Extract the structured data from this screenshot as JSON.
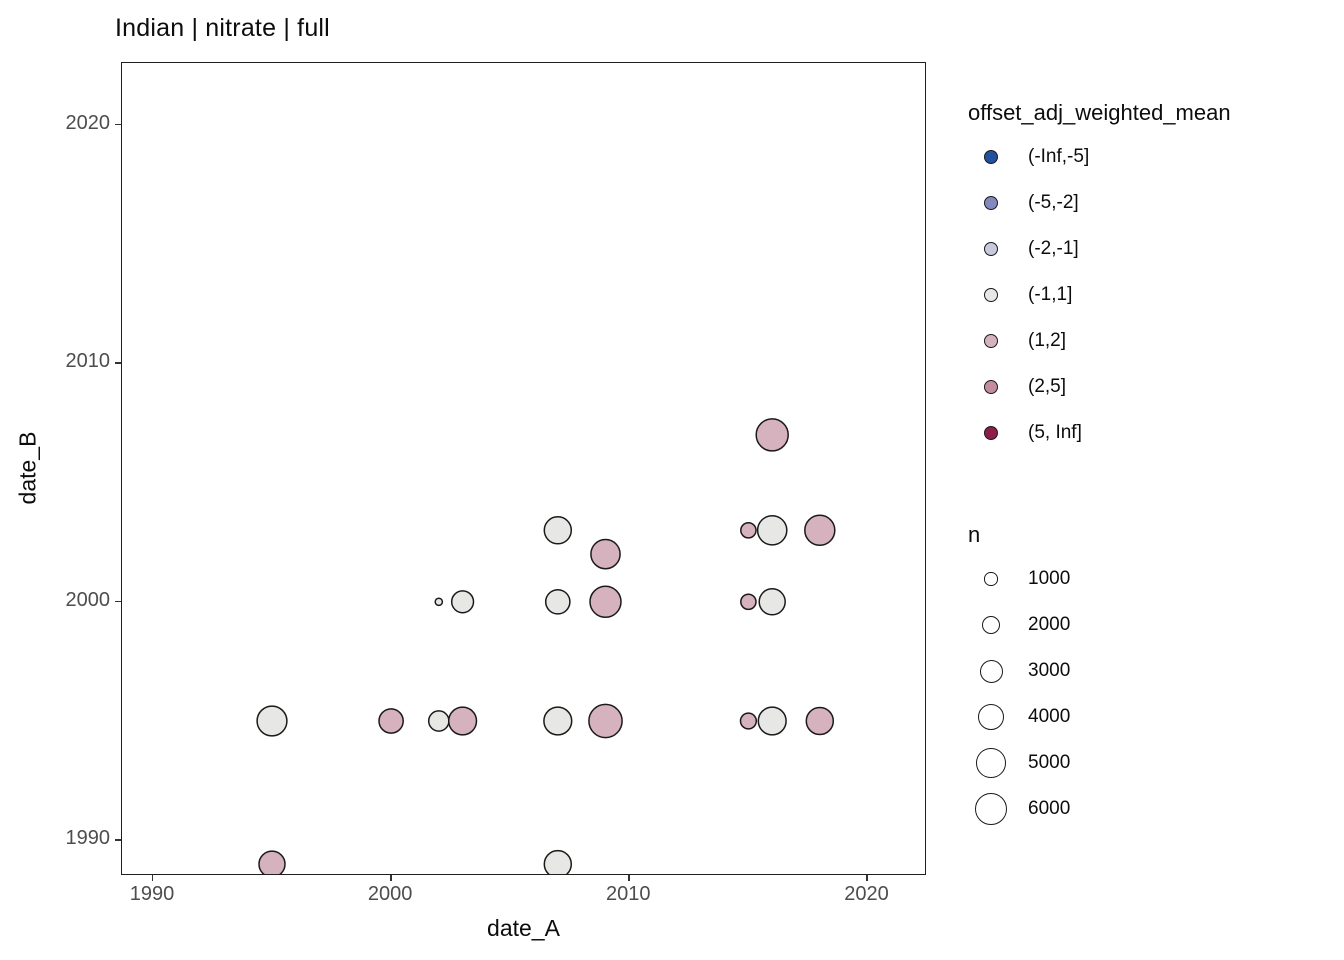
{
  "title": "Indian | nitrate | full",
  "axes": {
    "x": {
      "label": "date_A"
    },
    "y": {
      "label": "date_B"
    }
  },
  "legend_color": {
    "title": "offset_adj_weighted_mean",
    "entries": [
      {
        "label": "(-Inf,-5]",
        "color": "#22529E"
      },
      {
        "label": "(-5,-2]",
        "color": "#8289BF"
      },
      {
        "label": "(-2,-1]",
        "color": "#C7C9DC"
      },
      {
        "label": "(-1,1]",
        "color": "#E7E7E5"
      },
      {
        "label": "(1,2]",
        "color": "#D5B2BD"
      },
      {
        "label": "(2,5]",
        "color": "#C38D9E"
      },
      {
        "label": "(5, Inf]",
        "color": "#8D1C4A"
      }
    ]
  },
  "legend_size": {
    "title": "n",
    "entries": [
      1000,
      2000,
      3000,
      4000,
      5000,
      6000
    ]
  },
  "colors": {
    "background": "#FFFFFF",
    "panel_border": "#1F1F1F",
    "point_stroke": "#1A1A1A",
    "tick_text": "#4D4D4D",
    "axis_text": "#0D0D0D"
  },
  "chart_data": {
    "type": "scatter",
    "title": "Indian | nitrate | full",
    "xlabel": "date_A",
    "ylabel": "date_B",
    "x_ticks": [
      1990,
      2000,
      2010,
      2020
    ],
    "y_ticks": [
      1990,
      2000,
      2010,
      2020
    ],
    "x_domain": [
      1988.7,
      2022.5
    ],
    "y_domain": [
      1988.5,
      2022.6
    ],
    "grid": false,
    "legend_position": "right",
    "size_scale": {
      "legend_n": [
        1000,
        2000,
        3000,
        4000,
        5000,
        6000
      ],
      "radius_px_at_1000": 6.65
    },
    "points": [
      {
        "date_A": 1995,
        "date_B": 1995,
        "n": 5000,
        "bin": "(-1,1]"
      },
      {
        "date_A": 1995,
        "date_B": 1989,
        "n": 3800,
        "bin": "(1,2]"
      },
      {
        "date_A": 2000,
        "date_B": 1995,
        "n": 3300,
        "bin": "(1,2]"
      },
      {
        "date_A": 2002,
        "date_B": 2000,
        "n": 300,
        "bin": "(-1,1]"
      },
      {
        "date_A": 2002,
        "date_B": 1995,
        "n": 2300,
        "bin": "(-1,1]"
      },
      {
        "date_A": 2003,
        "date_B": 2000,
        "n": 2700,
        "bin": "(-1,1]"
      },
      {
        "date_A": 2003,
        "date_B": 1995,
        "n": 4400,
        "bin": "(1,2]"
      },
      {
        "date_A": 2007,
        "date_B": 2003,
        "n": 4100,
        "bin": "(-1,1]"
      },
      {
        "date_A": 2007,
        "date_B": 2000,
        "n": 3300,
        "bin": "(-1,1]"
      },
      {
        "date_A": 2007,
        "date_B": 1995,
        "n": 4400,
        "bin": "(-1,1]"
      },
      {
        "date_A": 2007,
        "date_B": 1989,
        "n": 4100,
        "bin": "(-1,1]"
      },
      {
        "date_A": 2009,
        "date_B": 2002,
        "n": 4800,
        "bin": "(1,2]"
      },
      {
        "date_A": 2009,
        "date_B": 2000,
        "n": 5400,
        "bin": "(1,2]"
      },
      {
        "date_A": 2009,
        "date_B": 1995,
        "n": 6200,
        "bin": "(1,2]"
      },
      {
        "date_A": 2015,
        "date_B": 2003,
        "n": 1300,
        "bin": "(1,2]"
      },
      {
        "date_A": 2015,
        "date_B": 2000,
        "n": 1300,
        "bin": "(1,2]"
      },
      {
        "date_A": 2015,
        "date_B": 1995,
        "n": 1400,
        "bin": "(1,2]"
      },
      {
        "date_A": 2016,
        "date_B": 2007,
        "n": 5800,
        "bin": "(1,2]"
      },
      {
        "date_A": 2016,
        "date_B": 2003,
        "n": 4800,
        "bin": "(-1,1]"
      },
      {
        "date_A": 2016,
        "date_B": 2000,
        "n": 3800,
        "bin": "(-1,1]"
      },
      {
        "date_A": 2016,
        "date_B": 1995,
        "n": 4400,
        "bin": "(-1,1]"
      },
      {
        "date_A": 2018,
        "date_B": 2003,
        "n": 5100,
        "bin": "(1,2]"
      },
      {
        "date_A": 2018,
        "date_B": 1995,
        "n": 4100,
        "bin": "(1,2]"
      }
    ]
  }
}
